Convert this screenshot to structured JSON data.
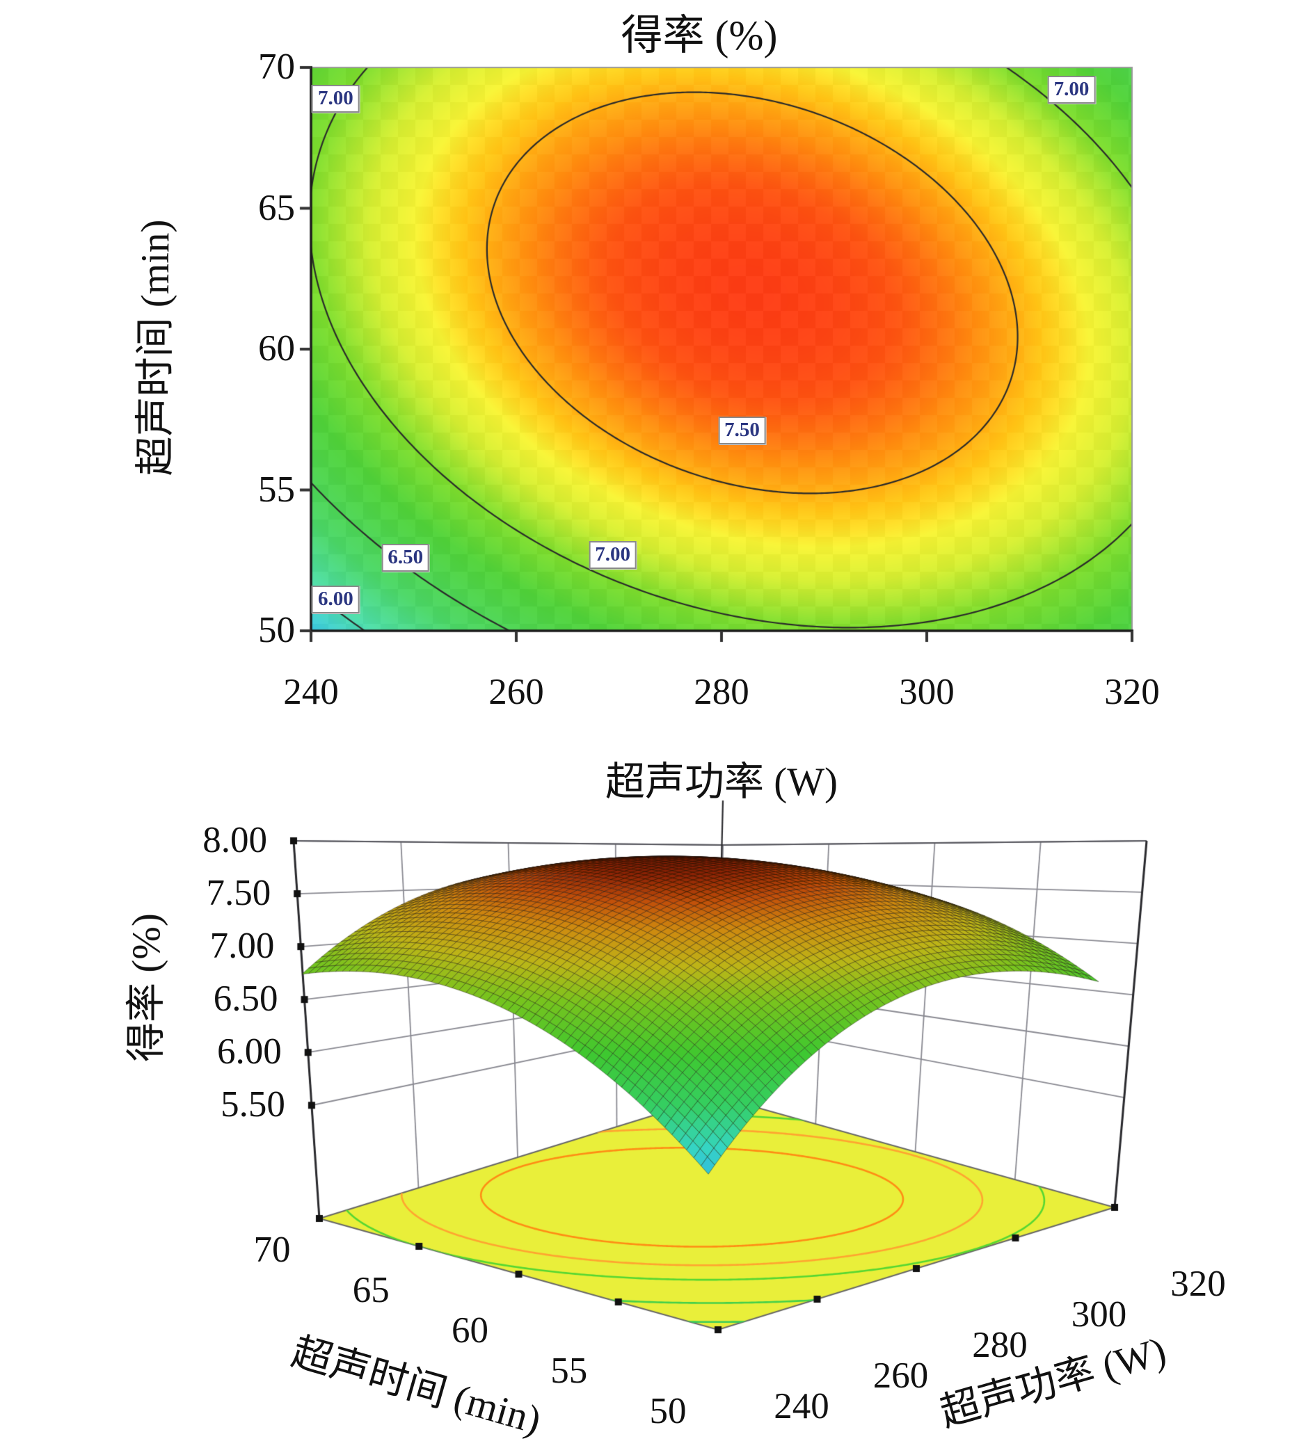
{
  "figure": {
    "description": "Response surface methodology figure: 2D contour plot and 3D surface plot of yield (%) vs ultrasonic power (W) and ultrasonic time (min)"
  },
  "chart_data": [
    {
      "type": "contour",
      "title": "得率 (%)",
      "xlabel": "超声功率 (W)",
      "ylabel": "超声时间 (min)",
      "x_ticks": [
        "240",
        "260",
        "280",
        "300",
        "320"
      ],
      "y_ticks": [
        "70",
        "65",
        "60",
        "55",
        "50"
      ],
      "xlim": [
        240,
        320
      ],
      "ylim": [
        50,
        70
      ],
      "zlim": [
        5.5,
        7.9
      ],
      "z_model": {
        "z0": 7.78,
        "pc": 283,
        "tc": 62,
        "a": -0.00044,
        "b": -0.0058,
        "c": -0.0007
      },
      "levels": [
        6.0,
        6.5,
        7.0,
        7.5
      ],
      "contour_labels": [
        {
          "text": "7.00",
          "p": 242.4,
          "t": 68.9
        },
        {
          "text": "7.00",
          "p": 314.1,
          "t": 69.2
        },
        {
          "text": "7.50",
          "p": 282.0,
          "t": 57.1
        },
        {
          "text": "7.00",
          "p": 269.4,
          "t": 52.7
        },
        {
          "text": "6.50",
          "p": 249.2,
          "t": 52.6
        },
        {
          "text": "6.00",
          "p": 242.4,
          "t": 51.1
        }
      ],
      "colormap": [
        [
          5.45,
          "#1b58e2"
        ],
        [
          5.75,
          "#38c4e6"
        ],
        [
          6.05,
          "#4cd9a4"
        ],
        [
          6.35,
          "#49d264"
        ],
        [
          6.75,
          "#4ece38"
        ],
        [
          7.0,
          "#7cd92c"
        ],
        [
          7.2,
          "#d2ea30"
        ],
        [
          7.33,
          "#f2ee32"
        ],
        [
          7.45,
          "#ffc214"
        ],
        [
          7.58,
          "#fe8c0e"
        ],
        [
          7.7,
          "#fb5110"
        ],
        [
          7.82,
          "#f93014"
        ]
      ],
      "line_color": "#2a2a2a"
    },
    {
      "type": "surface3d",
      "zlabel": "得率 (%)",
      "xlabel": "超声功率 (W)",
      "ylabel": "超声时间 (min)",
      "z_ticks": [
        "8.00",
        "7.50",
        "7.00",
        "6.50",
        "6.00",
        "5.50"
      ],
      "y_ticks": [
        "70",
        "65",
        "60",
        "55",
        "50"
      ],
      "x_ticks": [
        "240",
        "260",
        "280",
        "300",
        "320"
      ],
      "xlim": [
        240,
        320
      ],
      "ylim": [
        50,
        70
      ],
      "zlim": [
        5.5,
        8.0
      ],
      "z_model": {
        "z0": 7.78,
        "pc": 283,
        "tc": 62,
        "a": -0.00044,
        "b": -0.0058,
        "c": -0.0007
      },
      "floor_color": "#e9ef3a",
      "floor_contours": [
        {
          "level": 7.5,
          "color": "#ff8c14"
        },
        {
          "level": 7.25,
          "color": "#ffa430"
        },
        {
          "level": 7.0,
          "color": "#55d732"
        },
        {
          "level": 6.5,
          "color": "#44d04a"
        },
        {
          "level": 6.0,
          "color": "#3acb5a"
        }
      ],
      "surface_colormap": [
        [
          5.5,
          "#2e6ae6"
        ],
        [
          5.72,
          "#2fb6e8"
        ],
        [
          5.95,
          "#36d6c2"
        ],
        [
          6.25,
          "#35cf62"
        ],
        [
          6.6,
          "#3fc830"
        ],
        [
          6.95,
          "#79c41e"
        ],
        [
          7.2,
          "#bdb618"
        ],
        [
          7.45,
          "#cf8a10"
        ],
        [
          7.62,
          "#c2500a"
        ],
        [
          7.75,
          "#8f2406"
        ],
        [
          7.85,
          "#5c1204"
        ]
      ],
      "mesh_color": "rgba(15,8,0,0.55)",
      "wall_color": "#8a8a92"
    }
  ]
}
